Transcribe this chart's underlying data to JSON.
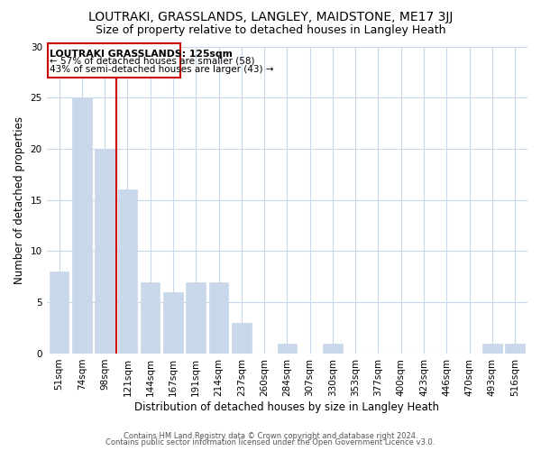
{
  "title": "LOUTRAKI, GRASSLANDS, LANGLEY, MAIDSTONE, ME17 3JJ",
  "subtitle": "Size of property relative to detached houses in Langley Heath",
  "xlabel": "Distribution of detached houses by size in Langley Heath",
  "ylabel": "Number of detached properties",
  "categories": [
    "51sqm",
    "74sqm",
    "98sqm",
    "121sqm",
    "144sqm",
    "167sqm",
    "191sqm",
    "214sqm",
    "237sqm",
    "260sqm",
    "284sqm",
    "307sqm",
    "330sqm",
    "353sqm",
    "377sqm",
    "400sqm",
    "423sqm",
    "446sqm",
    "470sqm",
    "493sqm",
    "516sqm"
  ],
  "values": [
    8,
    25,
    20,
    16,
    7,
    6,
    7,
    7,
    3,
    0,
    1,
    0,
    1,
    0,
    0,
    0,
    0,
    0,
    0,
    1,
    1
  ],
  "bar_color": "#c8d8ea",
  "marker_line_after_index": 2,
  "annotation_line1": "LOUTRAKI GRASSLANDS: 125sqm",
  "annotation_line2": "← 57% of detached houses are smaller (58)",
  "annotation_line3": "43% of semi-detached houses are larger (43) →",
  "marker_color": "#cc0000",
  "ylim": [
    0,
    30
  ],
  "yticks": [
    0,
    5,
    10,
    15,
    20,
    25,
    30
  ],
  "footer1": "Contains HM Land Registry data © Crown copyright and database right 2024.",
  "footer2": "Contains public sector information licensed under the Open Government Licence v3.0.",
  "background_color": "#ffffff",
  "grid_color": "#c8d8ea",
  "title_fontsize": 10,
  "subtitle_fontsize": 9,
  "axis_fontsize": 8.5,
  "tick_fontsize": 7.5
}
